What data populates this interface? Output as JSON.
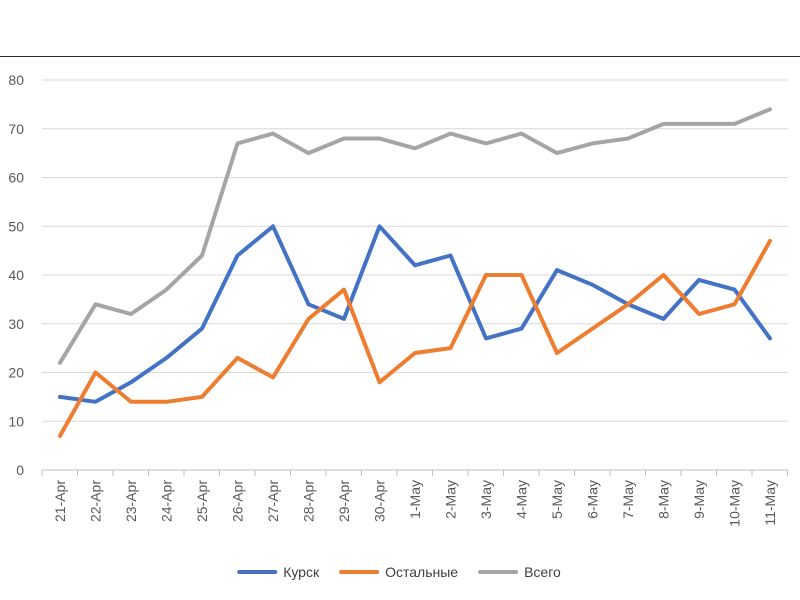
{
  "chart_data": {
    "type": "line",
    "title": "",
    "xlabel": "",
    "ylabel": "",
    "categories": [
      "21-Apr",
      "22-Apr",
      "23-Apr",
      "24-Apr",
      "25-Apr",
      "26-Apr",
      "27-Apr",
      "28-Apr",
      "29-Apr",
      "30-Apr",
      "1-May",
      "2-May",
      "3-May",
      "4-May",
      "5-May",
      "6-May",
      "7-May",
      "8-May",
      "9-May",
      "10-May",
      "11-May"
    ],
    "ylim": [
      0,
      80
    ],
    "yticks": [
      0,
      10,
      20,
      30,
      40,
      50,
      60,
      70,
      80
    ],
    "grid": true,
    "legend_position": "bottom",
    "series": [
      {
        "name": "Курск",
        "color": "#4472C4",
        "values": [
          15,
          14,
          18,
          23,
          29,
          44,
          50,
          34,
          31,
          50,
          42,
          44,
          27,
          29,
          41,
          38,
          34,
          31,
          39,
          37,
          27
        ]
      },
      {
        "name": "Остальные",
        "color": "#ED7D31",
        "values": [
          7,
          20,
          14,
          14,
          15,
          23,
          19,
          31,
          37,
          18,
          24,
          25,
          40,
          40,
          24,
          29,
          34,
          40,
          32,
          34,
          47
        ]
      },
      {
        "name": "Всего",
        "color": "#A5A5A5",
        "values": [
          22,
          34,
          32,
          37,
          44,
          67,
          69,
          65,
          68,
          68,
          66,
          69,
          67,
          69,
          65,
          67,
          68,
          71,
          71,
          71,
          74
        ]
      }
    ]
  }
}
